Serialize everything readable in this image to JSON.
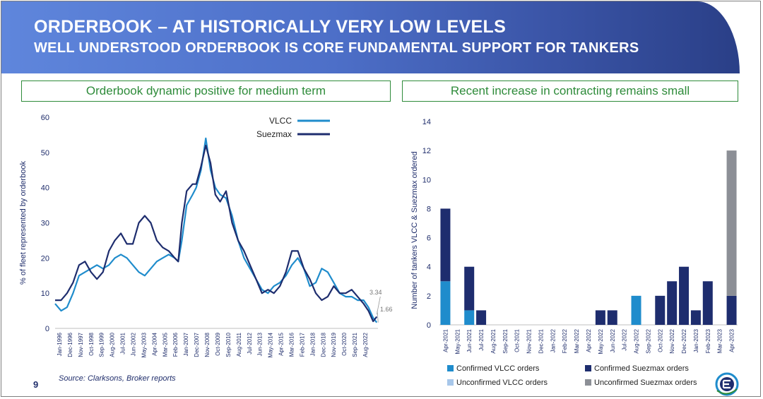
{
  "header": {
    "title": "ORDERBOOK – AT HISTORICALLY VERY LOW LEVELS",
    "subtitle": "WELL UNDERSTOOD ORDERBOOK IS CORE FUNDAMENTAL SUPPORT FOR TANKERS"
  },
  "left_panel_title": "Orderbook dynamic positive for medium term",
  "right_panel_title": "Recent increase in contracting remains small",
  "source": "Source: Clarksons, Broker reports",
  "page_number": "9",
  "colors": {
    "vlcc": "#1f8ccc",
    "suezmax": "#1e2d6e",
    "unconfirmed_vlcc": "#a7c7ea",
    "unconfirmed_suezmax": "#8c8f96",
    "axis_text": "#1f2d6b",
    "panel_green": "#2e8b3a"
  },
  "chart_data": [
    {
      "type": "line",
      "ylabel": "% of fleet represented by orderbook",
      "ylim": [
        0,
        60
      ],
      "yticks": [
        "0",
        "10",
        "20",
        "30",
        "40",
        "50",
        "60"
      ],
      "x_tick_labels": [
        "Jan-1996",
        "Dec-1996",
        "Nov-1997",
        "Oct-1998",
        "Sep-1999",
        "Aug-2000",
        "Jul-2001",
        "Jun-2002",
        "May-2003",
        "Apr-2004",
        "Mar-2005",
        "Feb-2006",
        "Jan-2007",
        "Dec-2007",
        "Nov-2008",
        "Oct-2009",
        "Sep-2010",
        "Aug-2011",
        "Jul-2012",
        "Jun-2013",
        "May-2014",
        "Apr-2015",
        "Mar-2016",
        "Feb-2017",
        "Jan-2018",
        "Dec-2018",
        "Nov-2019",
        "Oct-2020",
        "Sep-2021",
        "Aug-2022"
      ],
      "x_range": [
        1996.0,
        2023.0
      ],
      "annotations": [
        {
          "text": "3.34",
          "series": "Suezmax"
        },
        {
          "text": "1.66",
          "series": "VLCC"
        }
      ],
      "series": [
        {
          "name": "VLCC",
          "points": [
            [
              1996.0,
              7
            ],
            [
              1996.5,
              5
            ],
            [
              1997.0,
              6
            ],
            [
              1997.5,
              10
            ],
            [
              1998.0,
              15
            ],
            [
              1998.5,
              16
            ],
            [
              1999.0,
              17
            ],
            [
              1999.5,
              18
            ],
            [
              2000.0,
              17
            ],
            [
              2000.5,
              18
            ],
            [
              2001.0,
              20
            ],
            [
              2001.5,
              21
            ],
            [
              2002.0,
              20
            ],
            [
              2002.5,
              18
            ],
            [
              2003.0,
              16
            ],
            [
              2003.5,
              15
            ],
            [
              2004.0,
              17
            ],
            [
              2004.5,
              19
            ],
            [
              2005.0,
              20
            ],
            [
              2005.5,
              21
            ],
            [
              2006.0,
              20
            ],
            [
              2006.3,
              19
            ],
            [
              2006.6,
              25
            ],
            [
              2007.0,
              35
            ],
            [
              2007.5,
              38
            ],
            [
              2007.8,
              40
            ],
            [
              2008.2,
              45
            ],
            [
              2008.6,
              54
            ],
            [
              2009.0,
              45
            ],
            [
              2009.4,
              40
            ],
            [
              2009.8,
              38
            ],
            [
              2010.3,
              37
            ],
            [
              2010.8,
              32
            ],
            [
              2011.3,
              25
            ],
            [
              2011.8,
              20
            ],
            [
              2012.3,
              17
            ],
            [
              2012.8,
              14
            ],
            [
              2013.3,
              11
            ],
            [
              2013.8,
              10
            ],
            [
              2014.3,
              12
            ],
            [
              2014.8,
              13
            ],
            [
              2015.3,
              15
            ],
            [
              2015.8,
              18
            ],
            [
              2016.3,
              20
            ],
            [
              2016.8,
              17
            ],
            [
              2017.3,
              12
            ],
            [
              2017.8,
              13
            ],
            [
              2018.3,
              17
            ],
            [
              2018.8,
              16
            ],
            [
              2019.3,
              13
            ],
            [
              2019.8,
              10
            ],
            [
              2020.3,
              9
            ],
            [
              2020.8,
              9
            ],
            [
              2021.3,
              8
            ],
            [
              2021.8,
              8
            ],
            [
              2022.2,
              6
            ],
            [
              2022.6,
              3
            ],
            [
              2022.9,
              1.66
            ]
          ]
        },
        {
          "name": "Suezmax",
          "points": [
            [
              1996.0,
              8
            ],
            [
              1996.5,
              8
            ],
            [
              1997.0,
              10
            ],
            [
              1997.5,
              13
            ],
            [
              1998.0,
              18
            ],
            [
              1998.5,
              19
            ],
            [
              1999.0,
              16
            ],
            [
              1999.5,
              14
            ],
            [
              2000.0,
              16
            ],
            [
              2000.5,
              22
            ],
            [
              2001.0,
              25
            ],
            [
              2001.5,
              27
            ],
            [
              2002.0,
              24
            ],
            [
              2002.5,
              24
            ],
            [
              2003.0,
              30
            ],
            [
              2003.5,
              32
            ],
            [
              2004.0,
              30
            ],
            [
              2004.5,
              25
            ],
            [
              2005.0,
              23
            ],
            [
              2005.5,
              22
            ],
            [
              2006.0,
              20
            ],
            [
              2006.3,
              19
            ],
            [
              2006.6,
              30
            ],
            [
              2007.0,
              39
            ],
            [
              2007.5,
              41
            ],
            [
              2007.8,
              41
            ],
            [
              2008.2,
              46
            ],
            [
              2008.6,
              52
            ],
            [
              2009.0,
              47
            ],
            [
              2009.4,
              38
            ],
            [
              2009.8,
              36
            ],
            [
              2010.3,
              39
            ],
            [
              2010.8,
              30
            ],
            [
              2011.3,
              25
            ],
            [
              2011.8,
              22
            ],
            [
              2012.3,
              18
            ],
            [
              2012.8,
              14
            ],
            [
              2013.3,
              10
            ],
            [
              2013.8,
              11
            ],
            [
              2014.3,
              10
            ],
            [
              2014.8,
              12
            ],
            [
              2015.3,
              16
            ],
            [
              2015.8,
              22
            ],
            [
              2016.3,
              22
            ],
            [
              2016.8,
              17
            ],
            [
              2017.3,
              14
            ],
            [
              2017.8,
              10
            ],
            [
              2018.3,
              8
            ],
            [
              2018.8,
              9
            ],
            [
              2019.3,
              12
            ],
            [
              2019.8,
              10
            ],
            [
              2020.3,
              10
            ],
            [
              2020.8,
              11
            ],
            [
              2021.3,
              9
            ],
            [
              2021.8,
              7
            ],
            [
              2022.2,
              5
            ],
            [
              2022.6,
              2
            ],
            [
              2022.9,
              3.34
            ]
          ]
        }
      ]
    },
    {
      "type": "bar",
      "stacked": true,
      "ylabel": "Number of tankers VLCC & Suezmax ordered",
      "ylim": [
        0,
        14
      ],
      "yticks": [
        "0",
        "2",
        "4",
        "6",
        "8",
        "10",
        "12",
        "14"
      ],
      "categories": [
        "Apr-2021",
        "May-2021",
        "Jun-2021",
        "Jul-2021",
        "Aug-2021",
        "Sep-2021",
        "Oct-2021",
        "Nov-2021",
        "Dec-2021",
        "Jan-2022",
        "Feb-2022",
        "Mar-2022",
        "Apr-2022",
        "May-2022",
        "Jun-2022",
        "Jul-2022",
        "Aug-2022",
        "Sep-2022",
        "Oct-2022",
        "Nov-2022",
        "Dec-2022",
        "Jan-2023",
        "Feb-2023",
        "Mar-2023",
        "Apr-2023"
      ],
      "series": [
        {
          "name": "Confirmed VLCC orders",
          "values": [
            3,
            0,
            1,
            0,
            0,
            0,
            0,
            0,
            0,
            0,
            0,
            0,
            0,
            0,
            0,
            0,
            2,
            0,
            0,
            0,
            0,
            0,
            0,
            0,
            0
          ]
        },
        {
          "name": "Confirmed Suezmax orders",
          "values": [
            5,
            0,
            3,
            1,
            0,
            0,
            0,
            0,
            0,
            0,
            0,
            0,
            0,
            1,
            1,
            0,
            0,
            0,
            2,
            3,
            4,
            1,
            3,
            0,
            2
          ]
        },
        {
          "name": "Unconfirmed VLCC orders",
          "values": [
            0,
            0,
            0,
            0,
            0,
            0,
            0,
            0,
            0,
            0,
            0,
            0,
            0,
            0,
            0,
            0,
            0,
            0,
            0,
            0,
            0,
            0,
            0,
            0,
            0
          ]
        },
        {
          "name": "Unconfirmed Suezmax orders",
          "values": [
            0,
            0,
            0,
            0,
            0,
            0,
            0,
            0,
            0,
            0,
            0,
            0,
            0,
            0,
            0,
            0,
            0,
            0,
            0,
            0,
            0,
            0,
            0,
            0,
            10
          ]
        }
      ]
    }
  ]
}
